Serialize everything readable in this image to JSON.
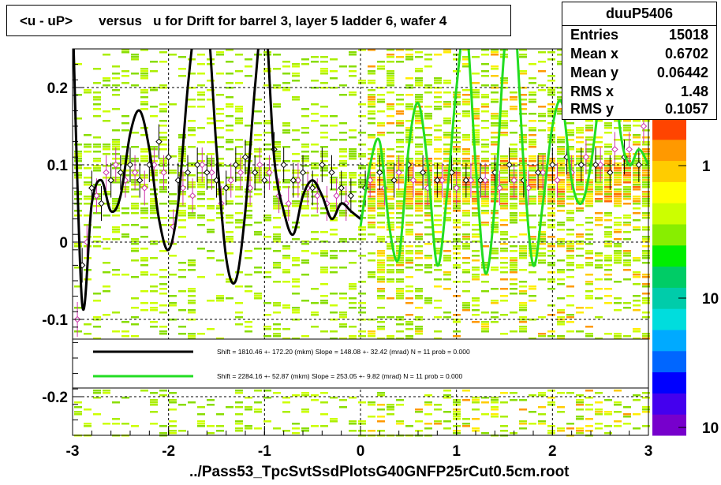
{
  "title": "<u - uP>       versus   u for Drift for barrel 3, layer 5 ladder 6, wafer 4",
  "footer": "../Pass53_TpcSvtSsdPlotsG40GNFP25rCut0.5cm.root",
  "stats": {
    "name": "duuP5406",
    "rows": [
      {
        "key": "Entries",
        "value": "15018"
      },
      {
        "key": "Mean x",
        "value": "0.6702"
      },
      {
        "key": "Mean y",
        "value": "0.06442"
      },
      {
        "key": "RMS x",
        "value": "1.48"
      },
      {
        "key": "RMS y",
        "value": "0.1057"
      }
    ]
  },
  "legend": {
    "black_label": "Shift =  1810.46 +- 172.20 (mkm) Slope =   148.08 +- 32.42 (mrad)  N = 11 prob = 0.000",
    "green_label": "Shift =  2284.16 +- 52.87 (mkm) Slope =   253.05 +- 9.82 (mrad)  N = 11 prob = 0.000"
  },
  "colors": {
    "black_fit": "#000000",
    "green_fit": "#22dd22",
    "profile_black": "#000000",
    "profile_magenta": "#cc33aa",
    "palette": [
      "#7700cc",
      "#4400ee",
      "#0000ff",
      "#0066ff",
      "#00aaff",
      "#00dddd",
      "#00ccaa",
      "#00cc66",
      "#00ee00",
      "#88ee00",
      "#ccff00",
      "#ffff00",
      "#ffcc00",
      "#ff9900",
      "#ff4400"
    ]
  },
  "chart_data": {
    "type": "heatmap",
    "title": "<u - uP>       versus   u for Drift for barrel 3, layer 5 ladder 6, wafer 4",
    "xlabel": "",
    "ylabel": "",
    "xlim": [
      -3,
      3
    ],
    "ylim": [
      -0.25,
      0.25
    ],
    "x_ticks": [
      "-3",
      "-2",
      "-1",
      "0",
      "1",
      "2",
      "3"
    ],
    "y_ticks": [
      "-0.2",
      "-0.1",
      "0",
      "0.1",
      "0.2"
    ],
    "z_ticks": [
      "1",
      "10",
      "10"
    ],
    "grid": true,
    "profile_black": {
      "x": [
        -2.9,
        -2.8,
        -2.7,
        -2.6,
        -2.5,
        -2.4,
        -2.3,
        -2.2,
        -2.1,
        -2.0,
        -1.9,
        -1.8,
        -1.7,
        -1.6,
        -1.5,
        -1.4,
        -1.3,
        -1.2,
        -1.1,
        -1.0,
        -0.9,
        -0.8,
        -0.7,
        -0.6,
        -0.5,
        -0.4,
        -0.3,
        -0.2,
        -0.1,
        0.05,
        0.2,
        0.35,
        0.5,
        0.65,
        0.8,
        0.95,
        1.1,
        1.25,
        1.4,
        1.55,
        1.7,
        1.85,
        2.0,
        2.15,
        2.3,
        2.45,
        2.6,
        2.75,
        2.9
      ],
      "y": [
        -0.03,
        0.07,
        0.05,
        0.08,
        0.09,
        0.1,
        0.08,
        0.1,
        0.13,
        0.11,
        0.08,
        0.09,
        0.1,
        0.09,
        0.08,
        0.07,
        0.1,
        0.11,
        0.09,
        0.08,
        0.12,
        0.1,
        0.08,
        0.09,
        0.07,
        0.1,
        0.09,
        0.07,
        0.06,
        0.07,
        0.09,
        0.08,
        0.1,
        0.09,
        0.08,
        0.09,
        0.08,
        0.08,
        0.09,
        0.1,
        0.08,
        0.09,
        0.1,
        0.11,
        0.1,
        0.1,
        0.09,
        0.11,
        0.1
      ]
    },
    "profile_magenta": {
      "x": [
        -2.95,
        -2.85,
        -2.75,
        -2.65,
        -2.55,
        -2.45,
        -2.35,
        -2.25,
        -2.15,
        -2.05,
        -1.95,
        -1.85,
        -1.75,
        -1.65,
        -1.55,
        -1.45,
        -1.35,
        -1.25,
        -1.15,
        -1.05,
        -0.95,
        -0.85,
        -0.75,
        -0.65,
        -0.55,
        -0.45,
        -0.35,
        -0.25,
        -0.15,
        0.1,
        0.25,
        0.4,
        0.55,
        0.7,
        0.85,
        1.0,
        1.15,
        1.3,
        1.45,
        1.6,
        1.75,
        1.9,
        2.05,
        2.2,
        2.35,
        2.5,
        2.65,
        2.8,
        2.95
      ],
      "y": [
        -0.1,
        0.0,
        0.06,
        0.09,
        0.1,
        0.08,
        0.09,
        0.07,
        0.1,
        0.09,
        0.02,
        0.07,
        0.06,
        0.1,
        0.09,
        0.05,
        0.08,
        0.09,
        0.07,
        0.1,
        0.09,
        0.06,
        0.05,
        0.08,
        0.07,
        0.06,
        0.05,
        0.06,
        0.05,
        0.08,
        0.07,
        0.09,
        0.08,
        0.07,
        0.08,
        0.07,
        0.08,
        0.08,
        0.07,
        0.08,
        0.07,
        0.09,
        0.08,
        0.09,
        0.11,
        0.1,
        0.12,
        0.12,
        0.15
      ]
    },
    "fit_black": {
      "x_range": [
        -3,
        0
      ],
      "description_free": true,
      "x": [
        -3.0,
        -2.9,
        -2.8,
        -2.7,
        -2.6,
        -2.5,
        -2.4,
        -2.3,
        -2.2,
        -2.1,
        -2.0,
        -1.9,
        -1.8,
        -1.7,
        -1.6,
        -1.5,
        -1.4,
        -1.3,
        -1.2,
        -1.1,
        -1.0,
        -0.9,
        -0.8,
        -0.7,
        -0.6,
        -0.5,
        -0.4,
        -0.3,
        -0.2,
        -0.1,
        0.0
      ],
      "y": [
        0.3,
        -0.08,
        0.05,
        0.08,
        0.04,
        0.06,
        0.14,
        0.17,
        0.12,
        0.03,
        -0.01,
        0.05,
        0.2,
        0.3,
        0.3,
        0.12,
        -0.02,
        -0.05,
        0.04,
        0.2,
        0.3,
        0.11,
        0.04,
        0.01,
        0.06,
        0.08,
        0.06,
        0.03,
        0.05,
        0.04,
        0.03
      ]
    },
    "fit_green": {
      "x": [
        0.0,
        0.1,
        0.2,
        0.3,
        0.4,
        0.5,
        0.6,
        0.7,
        0.8,
        0.9,
        1.0,
        1.1,
        1.2,
        1.3,
        1.4,
        1.5,
        1.6,
        1.7,
        1.8,
        1.9,
        2.0,
        2.1,
        2.2,
        2.3,
        2.4,
        2.5,
        2.6,
        2.7,
        2.8,
        2.9,
        3.0
      ],
      "y": [
        0.02,
        0.1,
        0.13,
        0.02,
        -0.02,
        0.12,
        0.18,
        0.1,
        -0.03,
        0.06,
        0.2,
        0.28,
        0.1,
        -0.04,
        0.05,
        0.25,
        0.3,
        0.1,
        -0.03,
        0.05,
        0.15,
        0.18,
        0.08,
        0.05,
        0.1,
        0.2,
        0.3,
        0.15,
        0.1,
        0.12,
        0.1
      ]
    }
  }
}
